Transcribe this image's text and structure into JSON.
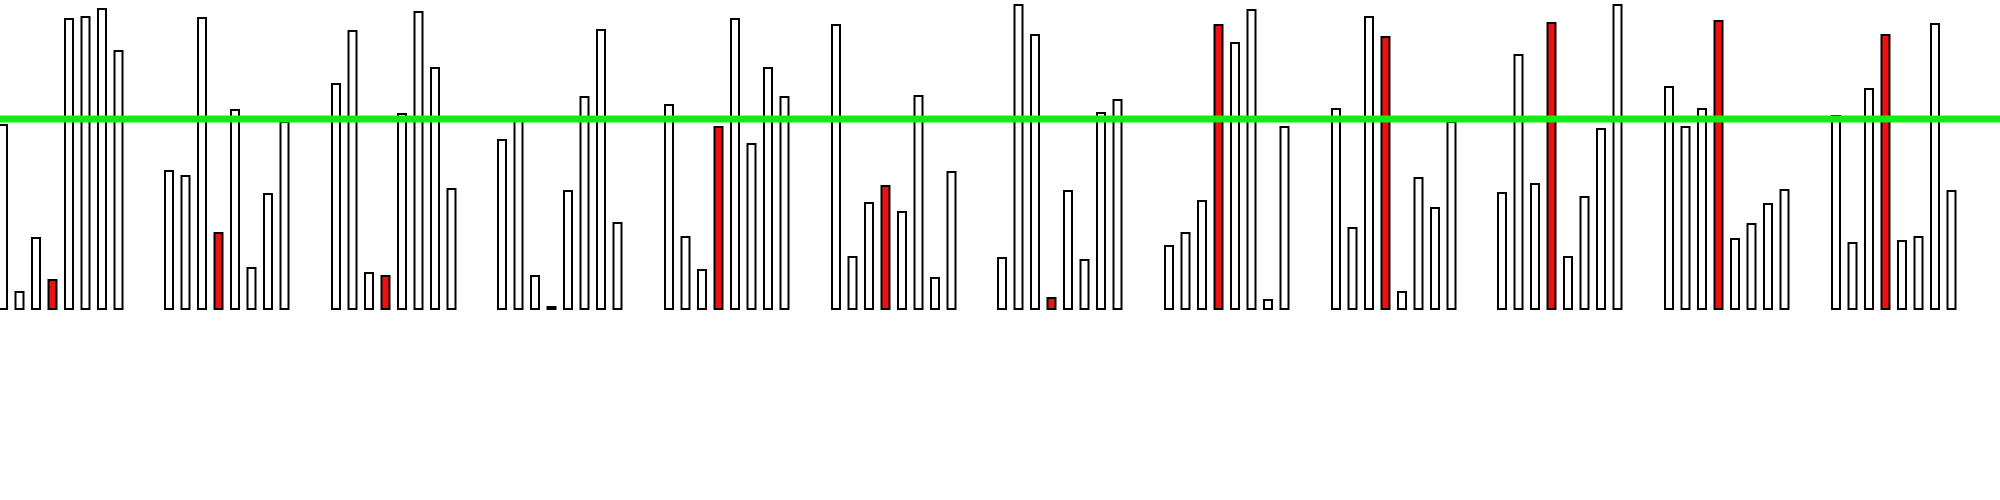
{
  "chart_data": {
    "type": "bar",
    "title": "",
    "xlabel": "",
    "ylabel": "",
    "ylim": [
      0,
      310
    ],
    "threshold": 190,
    "grid": false,
    "legend": "none",
    "colors": {
      "normal": "#ffffff",
      "highlight": "#ee1111",
      "line": "#11ee11",
      "stroke": "#000000"
    },
    "groups": [
      {
        "values": [
          184,
          17,
          71,
          29,
          290,
          292,
          300,
          258
        ],
        "highlight": [
          false,
          false,
          false,
          true,
          false,
          false,
          false,
          false
        ]
      },
      {
        "values": [
          138,
          133,
          291,
          76,
          199,
          41,
          115,
          187
        ],
        "highlight": [
          false,
          false,
          false,
          true,
          false,
          false,
          false,
          false
        ]
      },
      {
        "values": [
          225,
          278,
          36,
          33,
          195,
          297,
          241,
          120
        ],
        "highlight": [
          false,
          false,
          false,
          true,
          false,
          false,
          false,
          false
        ]
      },
      {
        "values": [
          169,
          192,
          33,
          2,
          118,
          212,
          279,
          86
        ],
        "highlight": [
          false,
          false,
          false,
          false,
          false,
          false,
          false,
          false
        ]
      },
      {
        "values": [
          204,
          72,
          39,
          182,
          290,
          165,
          241,
          212
        ],
        "highlight": [
          false,
          false,
          false,
          true,
          false,
          false,
          false,
          false
        ]
      },
      {
        "values": [
          284,
          52,
          106,
          123,
          97,
          213,
          31,
          137
        ],
        "highlight": [
          false,
          false,
          false,
          true,
          false,
          false,
          false,
          false
        ]
      },
      {
        "values": [
          51,
          304,
          274,
          11,
          118,
          49,
          196,
          209
        ],
        "highlight": [
          false,
          false,
          false,
          true,
          false,
          false,
          false,
          false
        ]
      },
      {
        "values": [
          63,
          76,
          108,
          284,
          266,
          299,
          9,
          182
        ],
        "highlight": [
          false,
          false,
          false,
          true,
          false,
          false,
          false,
          false
        ]
      },
      {
        "values": [
          200,
          81,
          292,
          272,
          17,
          131,
          101,
          187
        ],
        "highlight": [
          false,
          false,
          false,
          true,
          false,
          false,
          false,
          false
        ]
      },
      {
        "values": [
          116,
          254,
          125,
          286,
          52,
          112,
          180,
          304
        ],
        "highlight": [
          false,
          false,
          false,
          true,
          false,
          false,
          false,
          false
        ]
      },
      {
        "values": [
          222,
          182,
          200,
          288,
          70,
          85,
          105,
          119
        ],
        "highlight": [
          false,
          false,
          false,
          true,
          false,
          false,
          false,
          false
        ]
      },
      {
        "values": [
          193,
          66,
          220,
          274,
          68,
          72,
          285,
          118
        ],
        "highlight": [
          false,
          false,
          false,
          true,
          false,
          false,
          false,
          false
        ]
      }
    ]
  }
}
